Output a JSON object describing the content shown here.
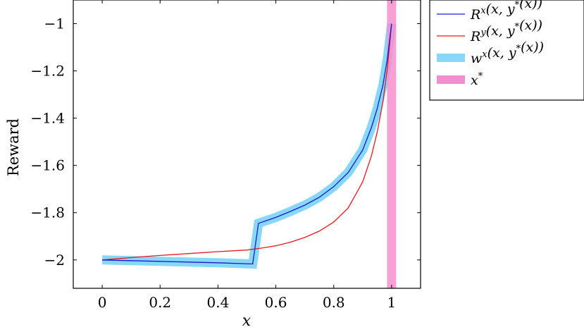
{
  "chart_data": {
    "type": "line",
    "xlabel": "x",
    "ylabel": "Reward",
    "xlim": [
      -0.1,
      1.1
    ],
    "ylim": [
      -2.12,
      -0.9
    ],
    "xticks": [
      0,
      0.2,
      0.4,
      0.6,
      0.8,
      1
    ],
    "xtick_labels": [
      "0",
      "0.2",
      "0.4",
      "0.6",
      "0.8",
      "1"
    ],
    "yticks": [
      -2,
      -1.8,
      -1.6,
      -1.4,
      -1.2,
      -1
    ],
    "ytick_labels": [
      "−2",
      "−1.8",
      "−1.6",
      "−1.4",
      "−1.2",
      "−1"
    ],
    "grid": false,
    "legend_position": "outside-top-right",
    "series": [
      {
        "name": "R^x(x, y^*(x))",
        "color": "#1a1adb",
        "style": "thin-line",
        "x": [
          0,
          0.1,
          0.2,
          0.3,
          0.4,
          0.52,
          0.54,
          0.6,
          0.65,
          0.7,
          0.75,
          0.8,
          0.85,
          0.9,
          0.93,
          0.95,
          0.97,
          0.985,
          1
        ],
        "y": [
          -2,
          -2.003,
          -2.006,
          -2.009,
          -2.012,
          -2.017,
          -1.845,
          -1.82,
          -1.795,
          -1.768,
          -1.735,
          -1.69,
          -1.63,
          -1.535,
          -1.44,
          -1.36,
          -1.26,
          -1.15,
          -1
        ]
      },
      {
        "name": "R^y(x, y^*(x))",
        "color": "#e8171d",
        "style": "thin-line",
        "x": [
          0,
          0.1,
          0.2,
          0.3,
          0.4,
          0.5,
          0.55,
          0.6,
          0.65,
          0.7,
          0.75,
          0.8,
          0.85,
          0.9,
          0.93,
          0.95,
          0.97,
          0.985,
          1
        ],
        "y": [
          -2,
          -1.99,
          -1.981,
          -1.973,
          -1.965,
          -1.958,
          -1.95,
          -1.94,
          -1.925,
          -1.905,
          -1.878,
          -1.84,
          -1.78,
          -1.67,
          -1.56,
          -1.46,
          -1.33,
          -1.19,
          -1
        ]
      },
      {
        "name": "w^x(x, y^*(x))",
        "color": "#87d8f7",
        "style": "thick-band",
        "x": [
          0,
          0.1,
          0.2,
          0.3,
          0.4,
          0.52,
          0.54,
          0.6,
          0.65,
          0.7,
          0.75,
          0.8,
          0.85,
          0.9,
          0.93,
          0.95,
          0.97,
          0.985,
          1
        ],
        "y": [
          -2,
          -2.003,
          -2.006,
          -2.009,
          -2.012,
          -2.017,
          -1.845,
          -1.82,
          -1.795,
          -1.768,
          -1.735,
          -1.69,
          -1.63,
          -1.535,
          -1.44,
          -1.36,
          -1.26,
          -1.15,
          -1
        ]
      },
      {
        "name": "x^*",
        "color": "#f48fcf",
        "style": "vertical-band",
        "x_value": 1
      }
    ],
    "legend": [
      {
        "label": "R",
        "sup": "x",
        "rest": "(x, y",
        "sup2": "*",
        "end": "(x))",
        "color": "#1a1adb",
        "kind": "line"
      },
      {
        "label": "R",
        "sup": "y",
        "rest": "(x, y",
        "sup2": "*",
        "end": "(x))",
        "color": "#e8171d",
        "kind": "line"
      },
      {
        "label": "w",
        "sup": "x",
        "rest": "(x, y",
        "sup2": "*",
        "end": "(x))",
        "color": "#87d8f7",
        "kind": "band"
      },
      {
        "label": "x",
        "sup": "*",
        "rest": "",
        "sup2": "",
        "end": "",
        "color": "#f48fcf",
        "kind": "band"
      }
    ]
  }
}
